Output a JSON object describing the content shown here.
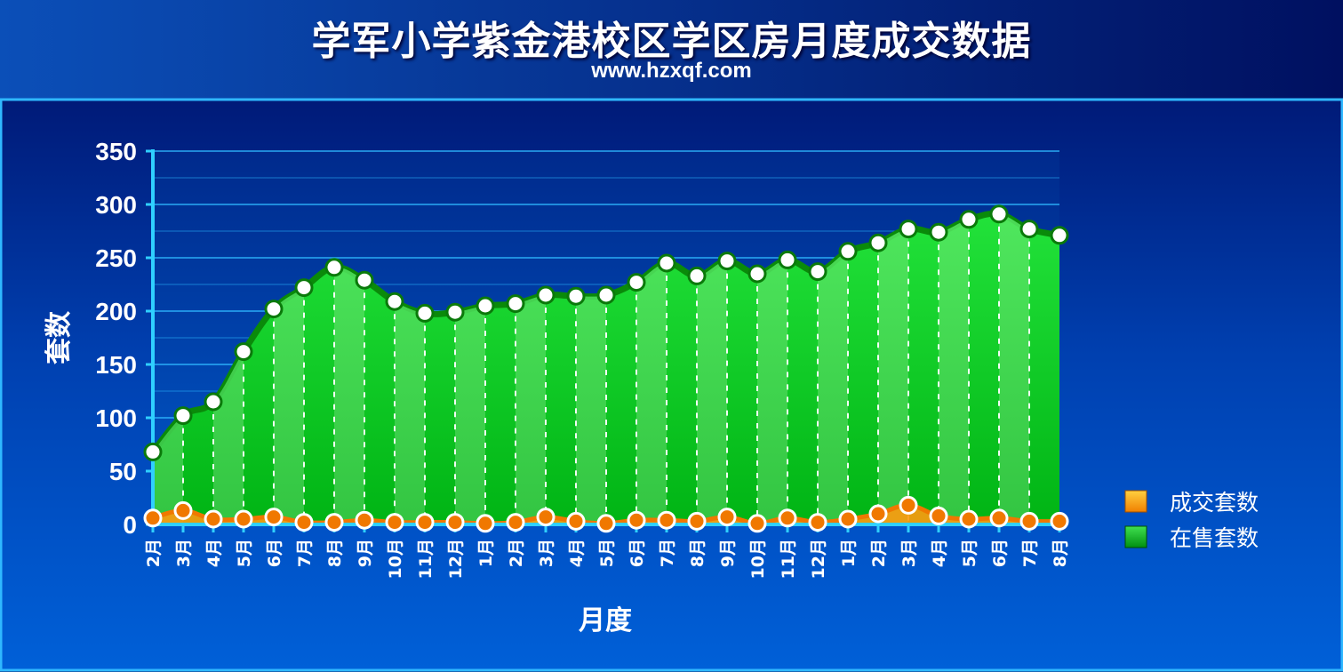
{
  "title": "学军小学紫金港校区学区房月度成交数据",
  "subtitle": "www.hzxqf.com",
  "colors": {
    "background_top": "#0a2a8a",
    "panel": "#0055c8",
    "panel_border": "#2fb8ff",
    "grid": "#2fb8ff",
    "listing_fill": "#00c61a",
    "listing_line": "#0a8a0a",
    "deal_line": "#f07800",
    "deal_fill": "#ff9a10",
    "marker_fill": "#ffffff"
  },
  "chart_data": {
    "type": "area",
    "xlabel": "月度",
    "ylabel": "套数",
    "ylim": [
      0,
      350
    ],
    "yticks": [
      0,
      50,
      100,
      150,
      200,
      250,
      300,
      350
    ],
    "grid": true,
    "legend_position": "right",
    "categories": [
      "2月",
      "3月",
      "4月",
      "5月",
      "6月",
      "7月",
      "8月",
      "9月",
      "10月",
      "11月",
      "12月",
      "1月",
      "2月",
      "3月",
      "4月",
      "5月",
      "6月",
      "7月",
      "8月",
      "9月",
      "10月",
      "11月",
      "12月",
      "1月",
      "2月",
      "3月",
      "4月",
      "5月",
      "6月",
      "7月",
      "8月"
    ],
    "series": [
      {
        "name": "在售套数",
        "values": [
          68,
          102,
          115,
          162,
          202,
          222,
          241,
          229,
          209,
          198,
          199,
          205,
          207,
          215,
          214,
          215,
          227,
          245,
          233,
          247,
          235,
          248,
          237,
          256,
          264,
          277,
          274,
          286,
          291,
          277,
          271
        ]
      },
      {
        "name": "成交套数",
        "values": [
          6,
          13,
          5,
          5,
          7,
          2,
          2,
          4,
          2,
          2,
          2,
          1,
          2,
          7,
          3,
          1,
          4,
          4,
          3,
          7,
          1,
          6,
          2,
          5,
          10,
          18,
          8,
          5,
          6,
          3,
          3
        ]
      }
    ]
  }
}
